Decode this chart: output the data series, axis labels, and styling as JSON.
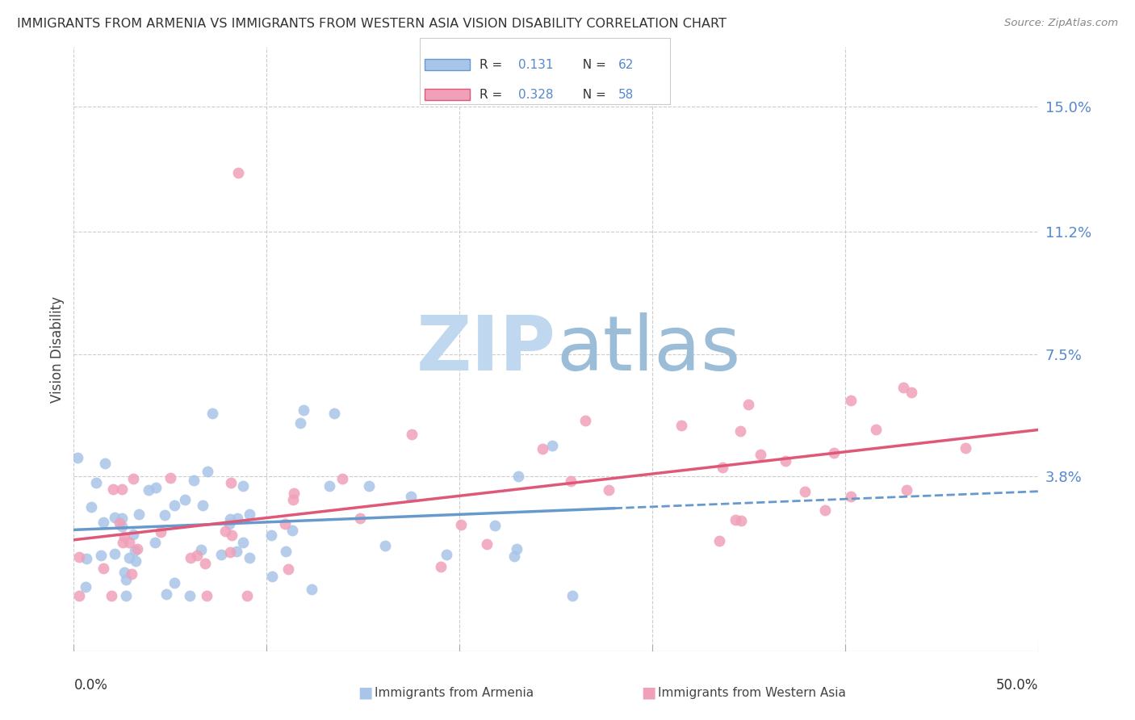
{
  "title": "IMMIGRANTS FROM ARMENIA VS IMMIGRANTS FROM WESTERN ASIA VISION DISABILITY CORRELATION CHART",
  "source": "Source: ZipAtlas.com",
  "ylabel": "Vision Disability",
  "ytick_labels": [
    "15.0%",
    "11.2%",
    "7.5%",
    "3.8%"
  ],
  "ytick_values": [
    0.15,
    0.112,
    0.075,
    0.038
  ],
  "xlim": [
    0.0,
    0.5
  ],
  "ylim": [
    -0.015,
    0.168
  ],
  "r_armenia": "0.131",
  "n_armenia": "62",
  "r_western": "0.328",
  "n_western": "58",
  "color_armenia": "#a8c4e8",
  "color_western_asia": "#f0a0b8",
  "color_line_armenia": "#6699cc",
  "color_line_western": "#e05878",
  "color_r_val": "#4477bb",
  "color_n_val": "#dd3333",
  "color_r_label": "#333333",
  "label_armenia": "Immigrants from Armenia",
  "label_western_asia": "Immigrants from Western Asia",
  "background_color": "#ffffff",
  "grid_color": "#cccccc",
  "watermark_color": "#c8dff0",
  "right_tick_color": "#5588cc",
  "title_color": "#333333",
  "source_color": "#888888",
  "ylabel_color": "#444444"
}
